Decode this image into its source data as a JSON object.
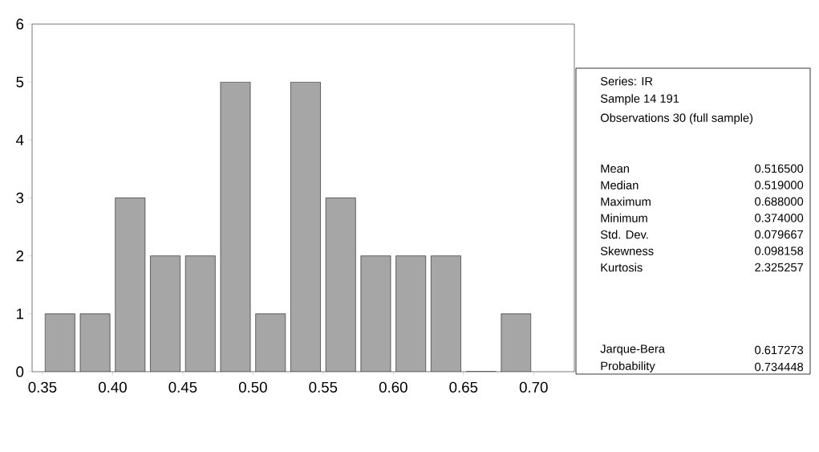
{
  "chart_data": {
    "type": "histogram",
    "bins": [
      0.35,
      0.375,
      0.4,
      0.425,
      0.45,
      0.475,
      0.5,
      0.525,
      0.55,
      0.575,
      0.6,
      0.625,
      0.65,
      0.675,
      0.7
    ],
    "values": [
      1,
      1,
      3,
      2,
      2,
      5,
      1,
      5,
      3,
      2,
      2,
      2,
      0,
      1
    ],
    "color": "#a6a6a6",
    "xlim": [
      0.3426,
      0.729
    ],
    "ylim": [
      0,
      6
    ],
    "xticks": [
      0.35,
      {
        "value": 0.4,
        "label": "0.40"
      },
      0.45,
      {
        "value": 0.5,
        "label": "0.50"
      },
      0.55,
      {
        "value": 0.6,
        "label": "0.60"
      },
      0.65,
      {
        "value": 0.7,
        "label": "0.70"
      }
    ],
    "yticks": [
      0,
      1,
      2,
      3,
      4,
      5,
      6
    ],
    "annotations": [
      "Series: IR",
      "Sample 14 191",
      "Observations 30 (full sample)",
      "Mean",
      "0.516500",
      "Median",
      "0.519000",
      "Maximum",
      "0.688000",
      "Minimum",
      "0.374000",
      "Std. Dev.",
      "0.079667",
      "Skewness",
      "0.098158",
      "Kurtosis",
      "2.325257",
      "Jarque-Bera",
      "0.617273",
      "Probability",
      "0.734448"
    ]
  }
}
